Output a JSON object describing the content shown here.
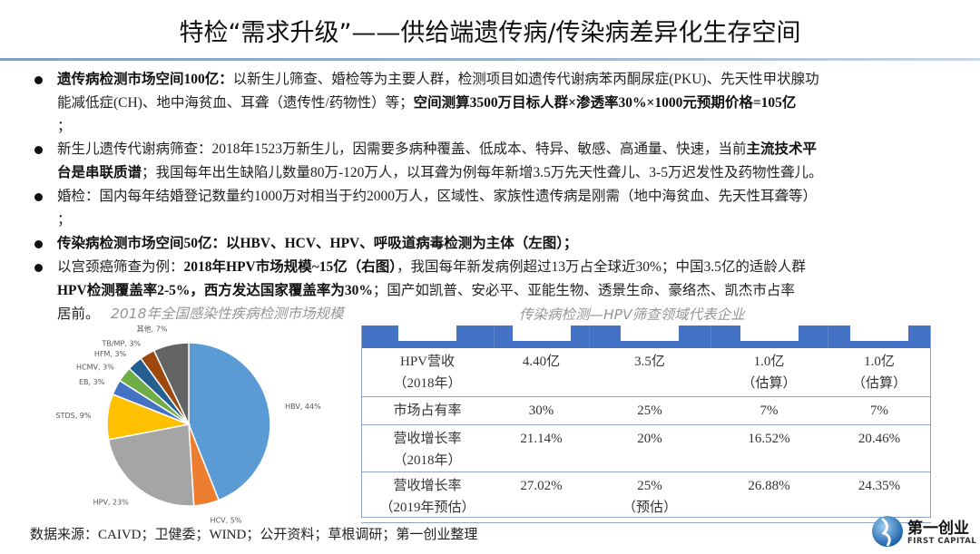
{
  "title": "特检“需求升级”——供给端遗传病/传染病差异化生存空间",
  "lines": [
    [
      {
        "b": true,
        "t": "遗传病检测市场空间100亿："
      },
      {
        "b": false,
        "t": "以新生儿筛查、婚检等为主要人群，检测项目如遗传代谢病苯丙酮尿症(PKU)、先天性甲状腺功"
      }
    ],
    [
      {
        "b": false,
        "t": "能减低症(CH)、地中海贫血、耳聋（遗传性/药物性）等；"
      },
      {
        "b": true,
        "t": "空间测算3500万目标人群×渗透率30%×1000元预期价格=105亿"
      }
    ],
    [
      {
        "b": false,
        "t": "；"
      }
    ],
    [
      {
        "b": false,
        "t": "新生儿遗传代谢病筛查：2018年1523万新生儿，因需要多病种覆盖、低成本、特异、敏感、高通量、快速，当前"
      },
      {
        "b": true,
        "t": "主流技术平"
      }
    ],
    [
      {
        "b": true,
        "t": "台是串联质谱"
      },
      {
        "b": false,
        "t": "；我国每年出生缺陷儿数量80万-120万人，以耳聋为例每年新增3.5万先天性聋儿、3-5万迟发性及药物性聋儿。"
      }
    ],
    [
      {
        "b": false,
        "t": "婚检：国内每年结婚登记数量约1000万对相当于约2000万人，区域性、家族性遗传病是刚需（地中海贫血、先天性耳聋等）"
      }
    ],
    [
      {
        "b": false,
        "t": "；"
      }
    ],
    [
      {
        "b": true,
        "t": "传染病检测市场空间50亿：以HBV、HCV、HPV、呼吸道病毒检测为主体（左图）；"
      }
    ],
    [
      {
        "b": false,
        "t": "以宫颈癌筛查为例："
      },
      {
        "b": true,
        "t": "2018年HPV市场规模~15亿（右图）"
      },
      {
        "b": false,
        "t": "，我国每年新发病例超过13万占全球近30%；中国3.5亿的适龄人群"
      }
    ],
    [
      {
        "b": true,
        "t": "HPV检测覆盖率2-5%，西方发达国家覆盖率为30%"
      },
      {
        "b": false,
        "t": "；国产如凯普、安必平、亚能生物、透景生命、豪络杰、凯杰市占率"
      }
    ],
    [
      {
        "b": false,
        "t": "居前。"
      }
    ]
  ],
  "captions": {
    "left": "2018年全国感染性疾病检测市场规模",
    "right": "传染病检测—HPV筛查领域代表企业"
  },
  "table": {
    "rows": [
      {
        "label": [
          "HPV营收",
          "（2018年）"
        ],
        "cells": [
          [
            "4.40亿"
          ],
          [
            "3.5亿"
          ],
          [
            "1.0亿",
            "（估算）"
          ],
          [
            "1.0亿",
            "（估算）"
          ]
        ]
      },
      {
        "label": [
          "市场占有率"
        ],
        "cells": [
          [
            "30%"
          ],
          [
            "25%"
          ],
          [
            "7%"
          ],
          [
            "7%"
          ]
        ]
      },
      {
        "label": [
          "营收增长率",
          "（2018年）"
        ],
        "cells": [
          [
            "21.14%"
          ],
          [
            "20%"
          ],
          [
            "16.52%"
          ],
          [
            "20.46%"
          ]
        ]
      },
      {
        "label": [
          "营收增长率",
          "（2019年预估）"
        ],
        "cells": [
          [
            "27.02%"
          ],
          [
            "25%",
            "（预估）"
          ],
          [
            "26.88%"
          ],
          [
            "24.35%"
          ]
        ]
      }
    ],
    "header_color": "#4472c4"
  },
  "chart_data": {
    "type": "pie",
    "start": "top, clockwise",
    "slices": [
      {
        "label": "HBV, 44%",
        "name": "HBV",
        "value": 44,
        "color": "#5b9bd5"
      },
      {
        "label": "HCV, 5%",
        "name": "HCV",
        "value": 5,
        "color": "#ed7d31"
      },
      {
        "label": "HPV, 23%",
        "name": "HPV",
        "value": 23,
        "color": "#a5a5a5"
      },
      {
        "label": "STDS, 9%",
        "name": "STDS",
        "value": 9,
        "color": "#ffc000"
      },
      {
        "label": "EB, 3%",
        "name": "EB",
        "value": 3,
        "color": "#4472c4"
      },
      {
        "label": "HCMV, 3%",
        "name": "HCMV",
        "value": 3,
        "color": "#70ad47"
      },
      {
        "label": "HFM, 3%",
        "name": "HFM",
        "value": 3,
        "color": "#255e91"
      },
      {
        "label": "TB/MP, 3%",
        "name": "TB/MP",
        "value": 3,
        "color": "#9e480e"
      },
      {
        "label": "其他, 7%",
        "name": "其他",
        "value": 7,
        "color": "#636363"
      }
    ]
  },
  "source": "数据来源：CAIVD；卫健委；WIND；公开资料；草根调研；第一创业整理",
  "logo": {
    "cn": "第一创业",
    "en": "FIRST CAPITAL"
  }
}
